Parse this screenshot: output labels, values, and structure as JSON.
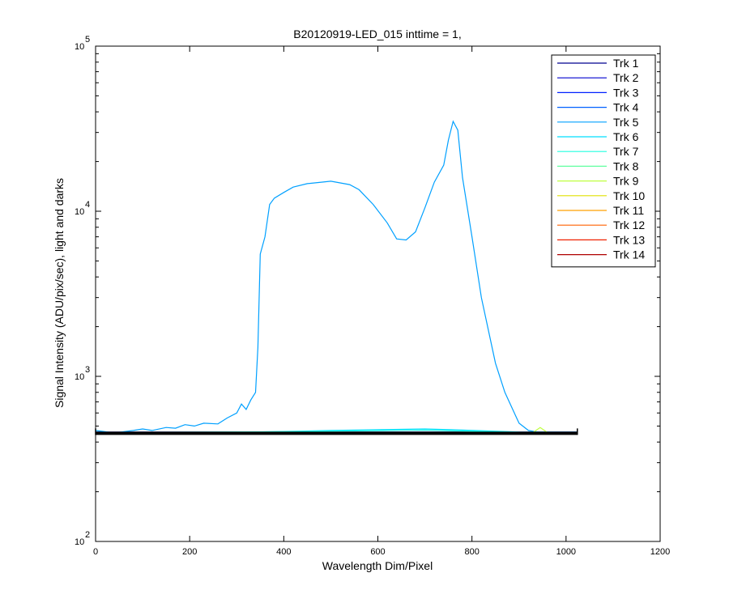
{
  "chart_data": {
    "type": "line",
    "title": "B20120919-LED_015 inttime = 1,",
    "xlabel": "Wavelength Dim/Pixel",
    "ylabel": "Signal Intensity (ADU/pix/sec), light and darks",
    "xlim": [
      0,
      1200
    ],
    "ylim": [
      100,
      100000
    ],
    "yscale": "log",
    "grid": false,
    "legend_position": "top-right",
    "x_ticks": [
      0,
      200,
      400,
      600,
      800,
      1000,
      1200
    ],
    "y_ticks": [
      {
        "value": 100,
        "base": "10",
        "exp": "2"
      },
      {
        "value": 1000,
        "base": "10",
        "exp": "3"
      },
      {
        "value": 10000,
        "base": "10",
        "exp": "4"
      },
      {
        "value": 100000,
        "base": "10",
        "exp": "5"
      }
    ],
    "series": [
      {
        "name": "Trk 1",
        "color": "#00008F",
        "points": [
          [
            0,
            460
          ],
          [
            1024,
            460
          ]
        ]
      },
      {
        "name": "Trk 2",
        "color": "#0000CF",
        "points": [
          [
            0,
            455
          ],
          [
            1024,
            455
          ]
        ]
      },
      {
        "name": "Trk 3",
        "color": "#0020FF",
        "points": [
          [
            0,
            457
          ],
          [
            1024,
            457
          ]
        ]
      },
      {
        "name": "Trk 4",
        "color": "#0060FF",
        "points": [
          [
            0,
            456
          ],
          [
            1024,
            456
          ]
        ]
      },
      {
        "name": "Trk 5",
        "color": "#00A0FF",
        "points": [
          [
            0,
            470
          ],
          [
            40,
            455
          ],
          [
            80,
            470
          ],
          [
            100,
            480
          ],
          [
            120,
            470
          ],
          [
            150,
            490
          ],
          [
            170,
            485
          ],
          [
            190,
            510
          ],
          [
            210,
            500
          ],
          [
            230,
            520
          ],
          [
            260,
            515
          ],
          [
            280,
            560
          ],
          [
            300,
            600
          ],
          [
            310,
            680
          ],
          [
            320,
            630
          ],
          [
            330,
            720
          ],
          [
            340,
            800
          ],
          [
            345,
            1500
          ],
          [
            350,
            5500
          ],
          [
            360,
            7000
          ],
          [
            370,
            11000
          ],
          [
            380,
            12000
          ],
          [
            400,
            13000
          ],
          [
            420,
            14000
          ],
          [
            450,
            14700
          ],
          [
            480,
            15000
          ],
          [
            500,
            15200
          ],
          [
            540,
            14500
          ],
          [
            560,
            13500
          ],
          [
            590,
            11000
          ],
          [
            620,
            8500
          ],
          [
            640,
            6800
          ],
          [
            660,
            6700
          ],
          [
            680,
            7500
          ],
          [
            700,
            10500
          ],
          [
            720,
            15000
          ],
          [
            740,
            19000
          ],
          [
            750,
            27000
          ],
          [
            760,
            35000
          ],
          [
            770,
            31000
          ],
          [
            780,
            16000
          ],
          [
            800,
            7000
          ],
          [
            820,
            3000
          ],
          [
            850,
            1200
          ],
          [
            870,
            800
          ],
          [
            900,
            520
          ],
          [
            920,
            470
          ],
          [
            940,
            460
          ],
          [
            1024,
            460
          ]
        ]
      },
      {
        "name": "Trk 6",
        "color": "#00DFFF",
        "points": [
          [
            0,
            458
          ],
          [
            300,
            458
          ],
          [
            500,
            470
          ],
          [
            700,
            480
          ],
          [
            760,
            475
          ],
          [
            900,
            460
          ],
          [
            1024,
            458
          ]
        ]
      },
      {
        "name": "Trk 7",
        "color": "#20FFDF",
        "points": [
          [
            0,
            457
          ],
          [
            400,
            462
          ],
          [
            700,
            472
          ],
          [
            900,
            458
          ],
          [
            1024,
            457
          ]
        ]
      },
      {
        "name": "Trk 8",
        "color": "#60FF9F",
        "points": [
          [
            0,
            457
          ],
          [
            1024,
            457
          ]
        ]
      },
      {
        "name": "Trk 9",
        "color": "#BFFF40",
        "points": [
          [
            0,
            457
          ],
          [
            930,
            458
          ],
          [
            945,
            490
          ],
          [
            960,
            458
          ],
          [
            1024,
            457
          ]
        ]
      },
      {
        "name": "Trk 10",
        "color": "#E0E000",
        "points": [
          [
            0,
            456
          ],
          [
            1024,
            456
          ]
        ]
      },
      {
        "name": "Trk 11",
        "color": "#FFA000",
        "points": [
          [
            0,
            455
          ],
          [
            1024,
            455
          ]
        ]
      },
      {
        "name": "Trk 12",
        "color": "#FF6000",
        "points": [
          [
            0,
            455
          ],
          [
            1024,
            455
          ]
        ]
      },
      {
        "name": "Trk 13",
        "color": "#EF2000",
        "points": [
          [
            0,
            454
          ],
          [
            1024,
            454
          ]
        ]
      },
      {
        "name": "Trk 14",
        "color": "#AF0000",
        "points": [
          [
            0,
            454
          ],
          [
            1024,
            454
          ]
        ]
      }
    ],
    "dark_band": {
      "color": "#000000",
      "x_range": [
        0,
        1024
      ],
      "value": 452
    }
  }
}
